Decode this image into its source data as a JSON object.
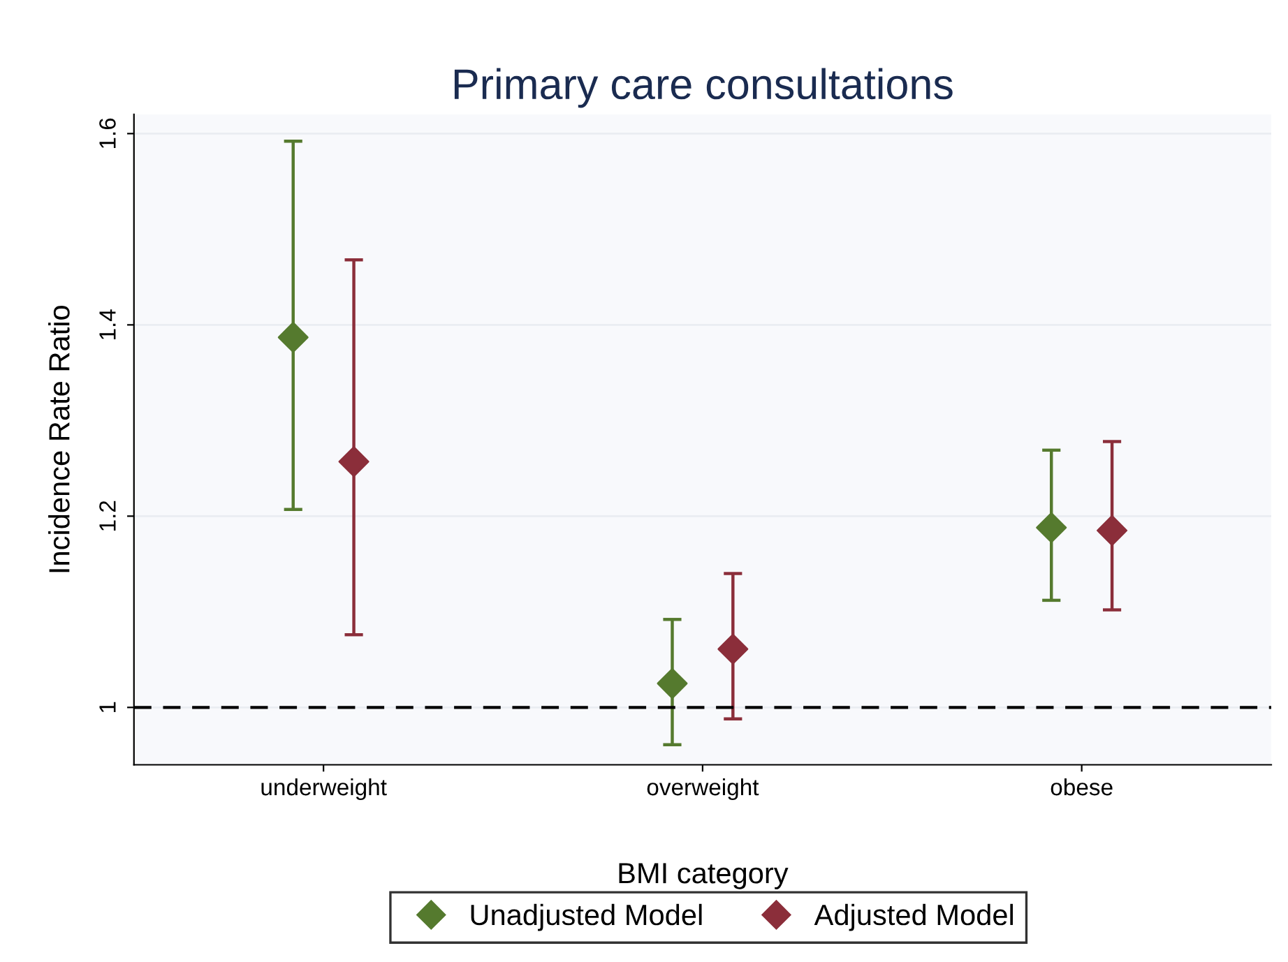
{
  "chart_data": {
    "type": "scatter",
    "title": "Primary care consultations",
    "xlabel": "BMI category",
    "ylabel": "Incidence Rate Ratio",
    "categories": [
      "underweight",
      "overweight",
      "obese"
    ],
    "series": [
      {
        "name": "Unadjusted Model",
        "color": "#557a2e",
        "values": [
          1.387,
          1.025,
          1.188
        ],
        "errors": [
          [
            1.207,
            1.592
          ],
          [
            0.961,
            1.092
          ],
          [
            1.112,
            1.269
          ]
        ]
      },
      {
        "name": "Adjusted Model",
        "color": "#8b2e3a",
        "values": [
          1.257,
          1.061,
          1.185
        ],
        "errors": [
          [
            1.076,
            1.468
          ],
          [
            0.988,
            1.14
          ],
          [
            1.102,
            1.278
          ]
        ]
      }
    ],
    "ylim": [
      0.94,
      1.62
    ],
    "yticks": [
      1,
      1.2,
      1.4,
      1.6
    ],
    "ref_lines": [
      {
        "axis": "y",
        "value": 1,
        "color": "#000000",
        "line_style": "dashed"
      }
    ],
    "grid": "y",
    "legend": "bottom",
    "marker": "diamond"
  }
}
